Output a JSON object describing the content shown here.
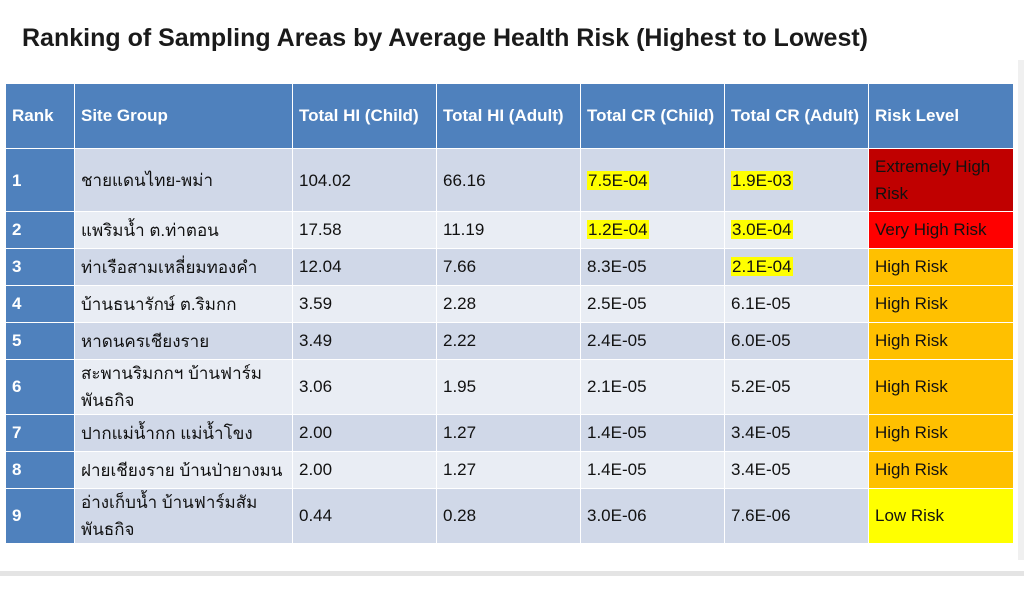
{
  "title": "Ranking of Sampling Areas by Average Health Risk (Highest to Lowest)",
  "table": {
    "headers": [
      "Rank",
      "Site Group",
      "Total HI (Child)",
      "Total HI (Adult)",
      "Total CR (Child)",
      "Total CR (Adult)",
      "Risk Level"
    ],
    "rows": [
      {
        "rank": "1",
        "site": "ชายแดนไทย-พม่า",
        "hi_child": "104.02",
        "hi_adult": "66.16",
        "cr_child": "7.5E-04",
        "cr_adult": "1.9E-03",
        "risk": "Extremely High Risk"
      },
      {
        "rank": "2",
        "site": "แพริมน้ำ ต.ท่าตอน",
        "hi_child": "17.58",
        "hi_adult": "11.19",
        "cr_child": "1.2E-04",
        "cr_adult": "3.0E-04",
        "risk": "Very High Risk"
      },
      {
        "rank": "3",
        "site": "ท่าเรือสามเหลี่ยมทองคำ",
        "hi_child": "12.04",
        "hi_adult": "7.66",
        "cr_child": "8.3E-05",
        "cr_adult": "2.1E-04",
        "risk": "High Risk"
      },
      {
        "rank": "4",
        "site": "บ้านธนารักษ์ ต.ริมกก",
        "hi_child": "3.59",
        "hi_adult": "2.28",
        "cr_child": "2.5E-05",
        "cr_adult": "6.1E-05",
        "risk": "High Risk"
      },
      {
        "rank": "5",
        "site": "หาดนครเชียงราย",
        "hi_child": "3.49",
        "hi_adult": "2.22",
        "cr_child": "2.4E-05",
        "cr_adult": "6.0E-05",
        "risk": "High Risk"
      },
      {
        "rank": "6",
        "site": "สะพานริมกกฯ บ้านฟาร์มพันธกิจ",
        "hi_child": "3.06",
        "hi_adult": "1.95",
        "cr_child": "2.1E-05",
        "cr_adult": "5.2E-05",
        "risk": "High Risk"
      },
      {
        "rank": "7",
        "site": "ปากแม่น้ำกก แม่น้ำโขง",
        "hi_child": "2.00",
        "hi_adult": "1.27",
        "cr_child": "1.4E-05",
        "cr_adult": "3.4E-05",
        "risk": "High Risk"
      },
      {
        "rank": "8",
        "site": "ฝายเชียงราย บ้านป่ายางมน",
        "hi_child": "2.00",
        "hi_adult": "1.27",
        "cr_child": "1.4E-05",
        "cr_adult": "3.4E-05",
        "risk": "High Risk"
      },
      {
        "rank": "9",
        "site": "อ่างเก็บน้ำ บ้านฟาร์มสัมพันธกิจ",
        "hi_child": "0.44",
        "hi_adult": "0.28",
        "cr_child": "3.0E-06",
        "cr_adult": "7.6E-06",
        "risk": "Low Risk"
      }
    ]
  },
  "colors": {
    "header_bg": "#4f81bd",
    "row_odd": "#d0d8e8",
    "row_even": "#e9edf4",
    "highlight": "#ffff00",
    "risk_extremely_high": "#c00000",
    "risk_very_high": "#ff0000",
    "risk_high": "#ffc000",
    "risk_low": "#ffff00"
  }
}
